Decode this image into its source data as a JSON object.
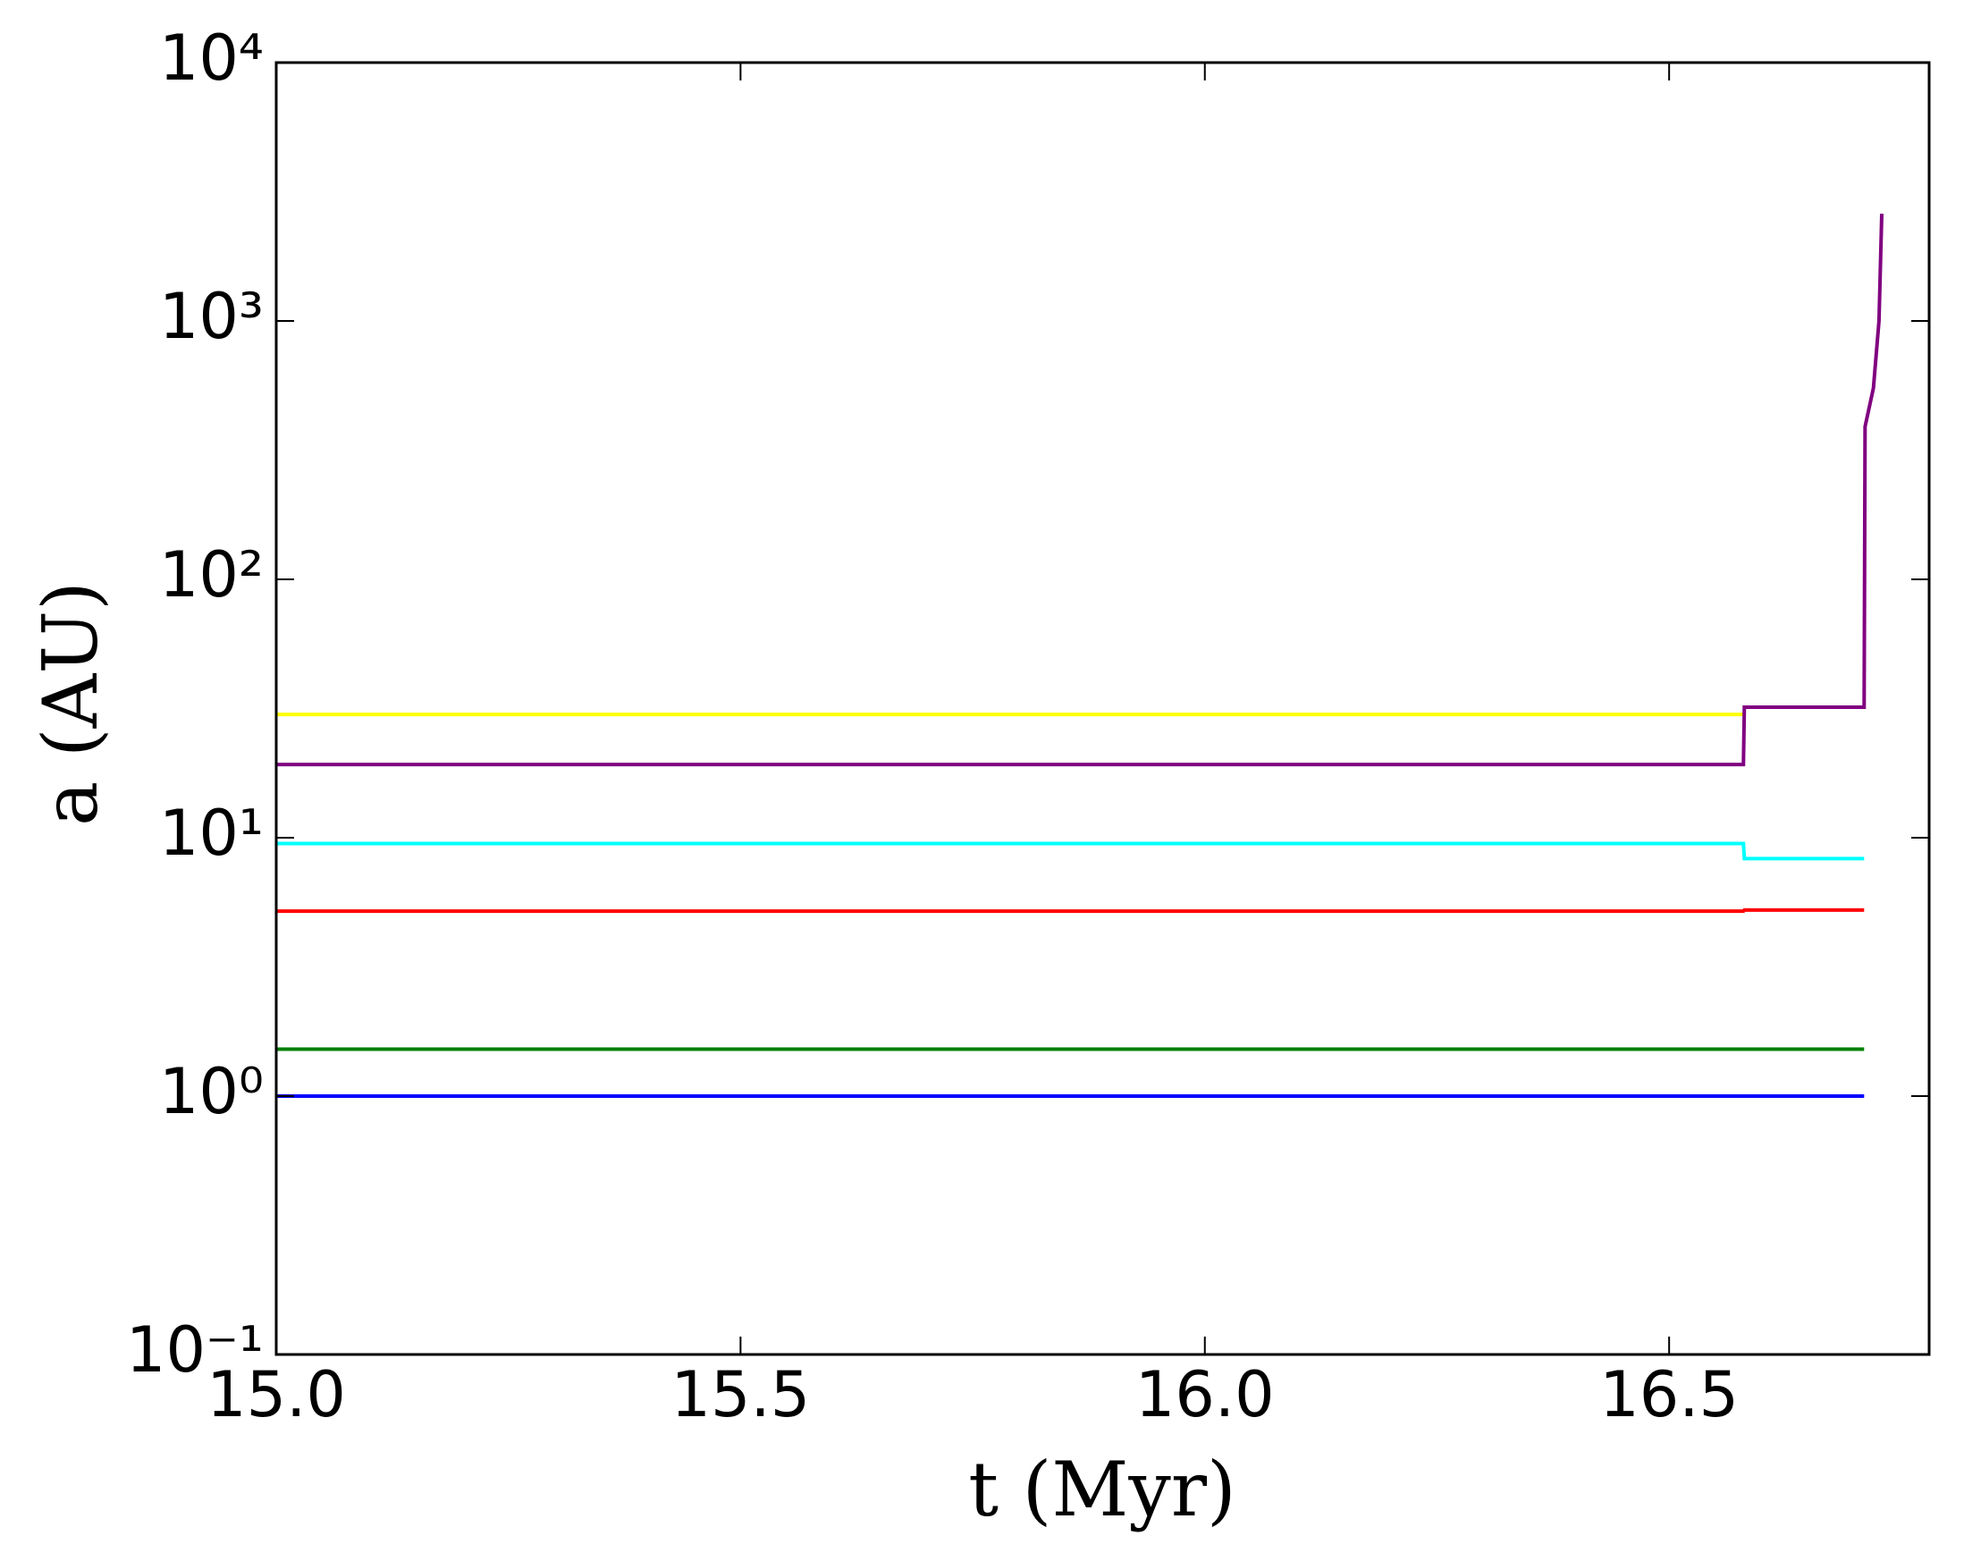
{
  "chart_data": {
    "type": "line",
    "xlabel": "t (Myr)",
    "ylabel": "a (AU)",
    "x": [
      15.0,
      16.58,
      16.581,
      16.71,
      16.711,
      16.72,
      16.726,
      16.729
    ],
    "series": [
      {
        "color": "#0000ff",
        "values": [
          1.0,
          1.0,
          1.0,
          1.0,
          null,
          null,
          null,
          null
        ]
      },
      {
        "color": "#008000",
        "values": [
          1.52,
          1.52,
          1.52,
          1.52,
          null,
          null,
          null,
          null
        ]
      },
      {
        "color": "#ff0000",
        "values": [
          5.2,
          5.2,
          5.25,
          5.25,
          null,
          null,
          null,
          null
        ]
      },
      {
        "color": "#00ffff",
        "values": [
          9.5,
          9.5,
          8.3,
          8.3,
          null,
          null,
          null,
          null
        ]
      },
      {
        "color": "#ffff00",
        "values": [
          30,
          30,
          null,
          null,
          null,
          null,
          null,
          null
        ]
      },
      {
        "color": "#800080",
        "values": [
          19.2,
          19.2,
          32,
          32,
          390,
          550,
          1000,
          2600
        ]
      }
    ],
    "xlim": [
      15.0,
      16.78
    ],
    "xticks": [
      {
        "value": 15.0,
        "label": "15.0"
      },
      15.5,
      {
        "value": 16.0,
        "label": "16.0"
      },
      16.5
    ],
    "ylim": [
      0.1,
      10000
    ],
    "yscale": "log",
    "yticks": [
      {
        "value": 0.1,
        "label": "10⁻¹"
      },
      {
        "value": 1,
        "label": "10⁰"
      },
      {
        "value": 10,
        "label": "10¹"
      },
      {
        "value": 100,
        "label": "10²"
      },
      {
        "value": 1000,
        "label": "10³"
      },
      {
        "value": 10000,
        "label": "10⁴"
      }
    ]
  }
}
